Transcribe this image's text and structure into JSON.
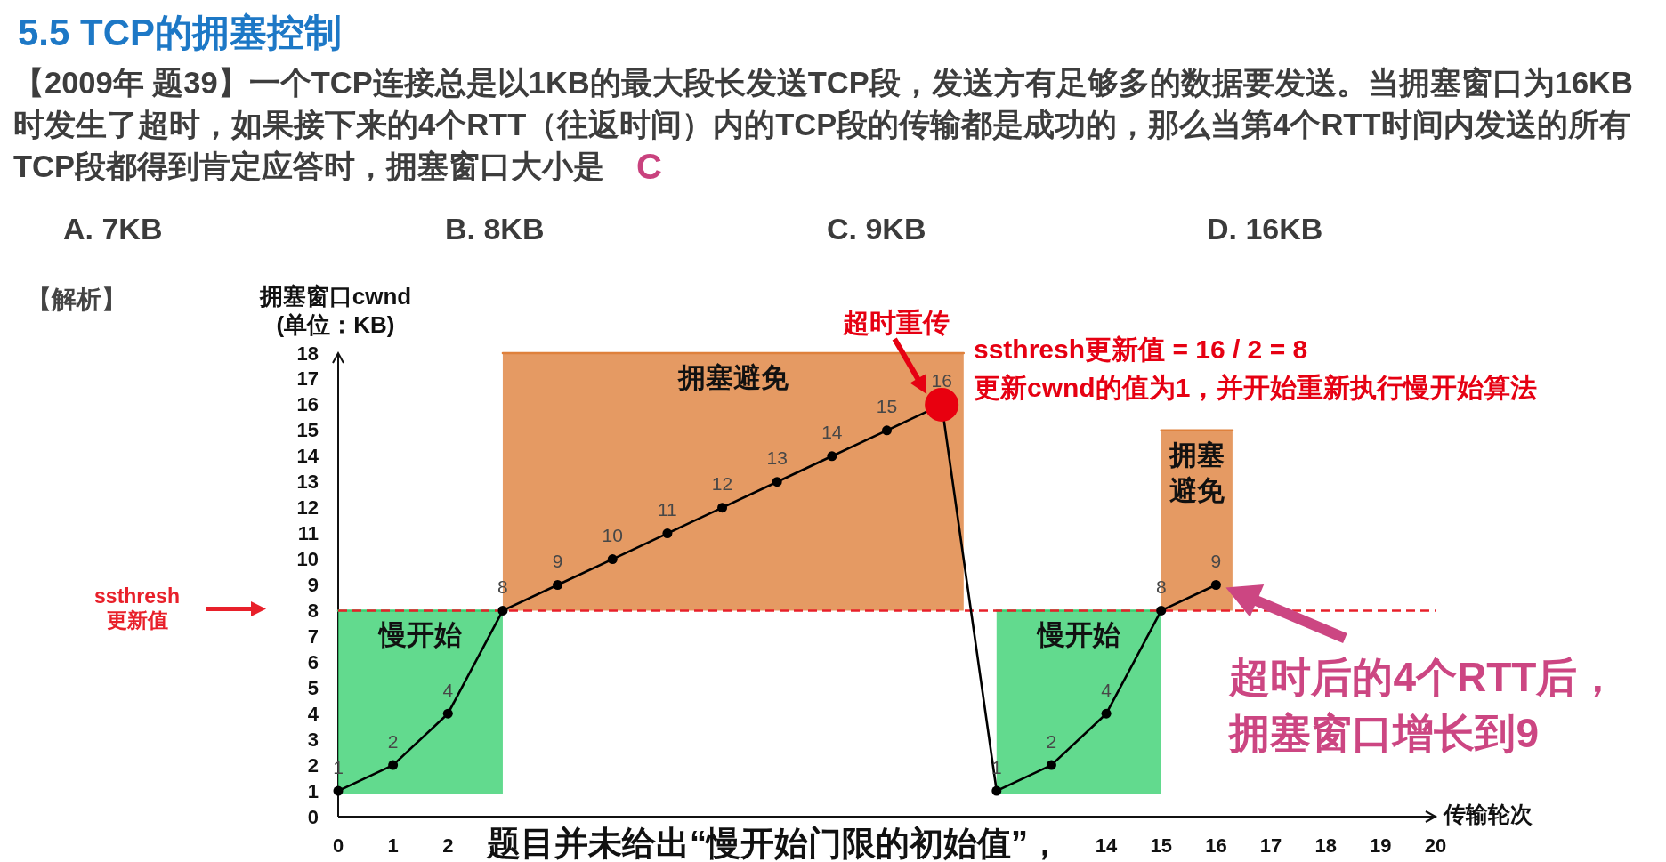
{
  "chart_data": {
    "type": "line",
    "title": "5.5 TCP的拥塞控制",
    "xlabel": "传输轮次",
    "ylabel": "拥塞窗口cwnd\n(单位：KB)",
    "xlim": [
      0,
      20
    ],
    "ylim": [
      0,
      18
    ],
    "xticks": [
      0,
      1,
      2,
      14,
      15,
      16,
      17,
      18,
      19,
      20
    ],
    "yticks": [
      0,
      1,
      2,
      3,
      4,
      5,
      6,
      7,
      8,
      9,
      10,
      11,
      12,
      13,
      14,
      15,
      16,
      17,
      18
    ],
    "series": [
      {
        "color": "#000000",
        "marker": "circle",
        "x": [
          0,
          1,
          2,
          3,
          4,
          5,
          6,
          7,
          8,
          9,
          10,
          11,
          12,
          13,
          14,
          15,
          16
        ],
        "values": [
          1,
          2,
          4,
          8,
          9,
          10,
          11,
          12,
          13,
          14,
          15,
          16,
          1,
          2,
          4,
          8,
          9
        ],
        "value_labels": [
          "1",
          "2",
          "4",
          "8",
          "9",
          "10",
          "11",
          "12",
          "13",
          "14",
          "15",
          "16",
          "1",
          "2",
          "4",
          "8",
          "9"
        ]
      },
      {
        "type": "scatter",
        "color": "#e8000f",
        "marker": "circle",
        "x": [
          11
        ],
        "values": [
          16
        ]
      },
      {
        "name": "慢开始",
        "color": "#3bd172",
        "x": [
          0,
          3
        ],
        "values": [
          8,
          8
        ],
        "lower": [
          0.9,
          0.9
        ],
        "upper": [
          8,
          8
        ]
      },
      {
        "name": "拥塞避免",
        "color": "#df813c",
        "x": [
          3,
          11.4
        ],
        "values": [
          18,
          18
        ],
        "lower": [
          8,
          8
        ],
        "upper": [
          18,
          18
        ]
      },
      {
        "name": "慢开始",
        "color": "#3bd172",
        "x": [
          12,
          15
        ],
        "values": [
          8,
          8
        ],
        "lower": [
          0.9,
          0.9
        ],
        "upper": [
          8,
          8
        ]
      },
      {
        "name": "拥塞避免",
        "color": "#df813c",
        "x": [
          15,
          16.3
        ],
        "values": [
          15,
          15
        ],
        "lower": [
          8,
          8
        ],
        "upper": [
          15,
          15
        ]
      }
    ],
    "ref_lines": [
      {
        "axis": "y",
        "value": 8,
        "label": "ssthresh\n更新值",
        "color": "#e8202a",
        "line_style": "dashed"
      }
    ],
    "annotations": [
      "【2009年 题39】一个TCP连接总是以1KB的最大段长发送TCP段，发送方有足够多的数据要发送。当拥塞窗口为16KB",
      "时发生了超时，如果接下来的4个RTT（往返时间）内的TCP段的传输都是成功的，那么当第4个RTT时间内发送的所有",
      "TCP段都得到肯定应答时，拥塞窗口大小是",
      "C",
      "A. 7KB",
      "B. 8KB",
      "C. 9KB",
      "D. 16KB",
      "【解析】",
      {
        "text": "超时重传",
        "x": 11,
        "y": 16
      },
      "ssthresh更新值 = 16 / 2 = 8",
      "更新cwnd的值为1，并开始重新执行慢开始算法",
      {
        "text": "超时后的4个RTT后，拥塞窗口增长到9",
        "x": 16,
        "y": 9
      },
      "题目并未给出“慢开始门限的初始值”，"
    ]
  }
}
